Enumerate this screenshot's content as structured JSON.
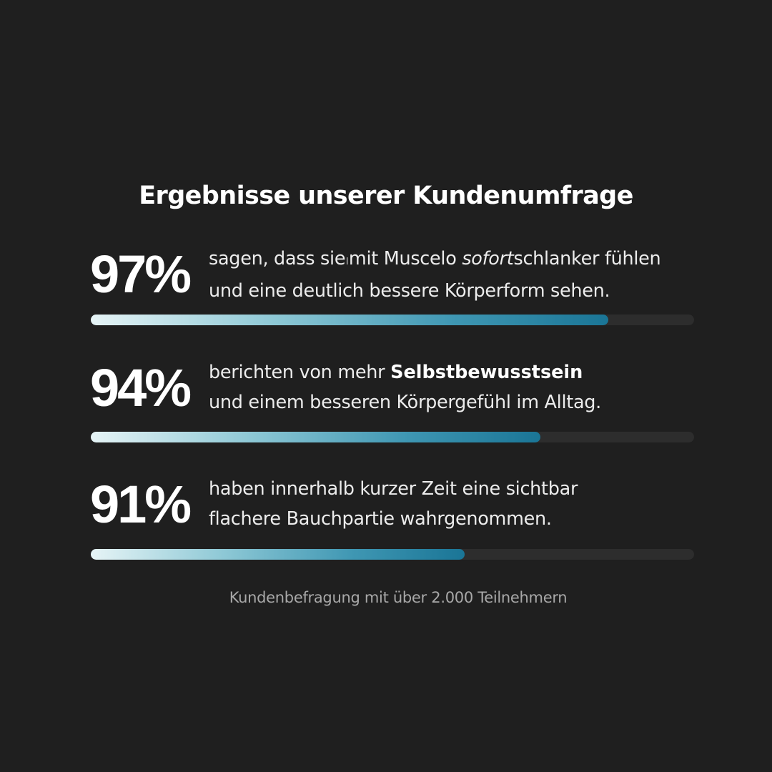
{
  "chart_data": {
    "type": "bar",
    "title": "Ergebnisse unserer Kundenumfrage",
    "value_unit": "%",
    "xlim": [
      0,
      100
    ],
    "bar_gradient": [
      "#e6f4f6",
      "#8fc9d6",
      "#3f97b3",
      "#1a7596"
    ],
    "track_color": "#2d2d2d",
    "background": "#1f1f1f",
    "values": [
      97,
      94,
      91
    ],
    "labels": [
      "97%",
      "94%",
      "91%"
    ],
    "descriptions": [
      {
        "line1_a": "sagen, dass sie",
        "line1_mark": "ı",
        "line1_b": "mit Muscelo ",
        "line1_italic": "sofort",
        "line1_c": "schlanker fühlen",
        "line2": "und eine deutlich bessere Körperform sehen."
      },
      {
        "line1_a": "berichten von mehr ",
        "line1_bold": "Selbstbewusstsein",
        "line2": "und einem besseren Körpergefühl im Alltag."
      },
      {
        "line1": "haben innerhalb kurzer Zeit eine sichtbar",
        "line2": "flachere Bauchpartie wahrgenommen."
      }
    ],
    "footnote": "Kundenbefragung mit über 2.000 Teilnehmern"
  }
}
